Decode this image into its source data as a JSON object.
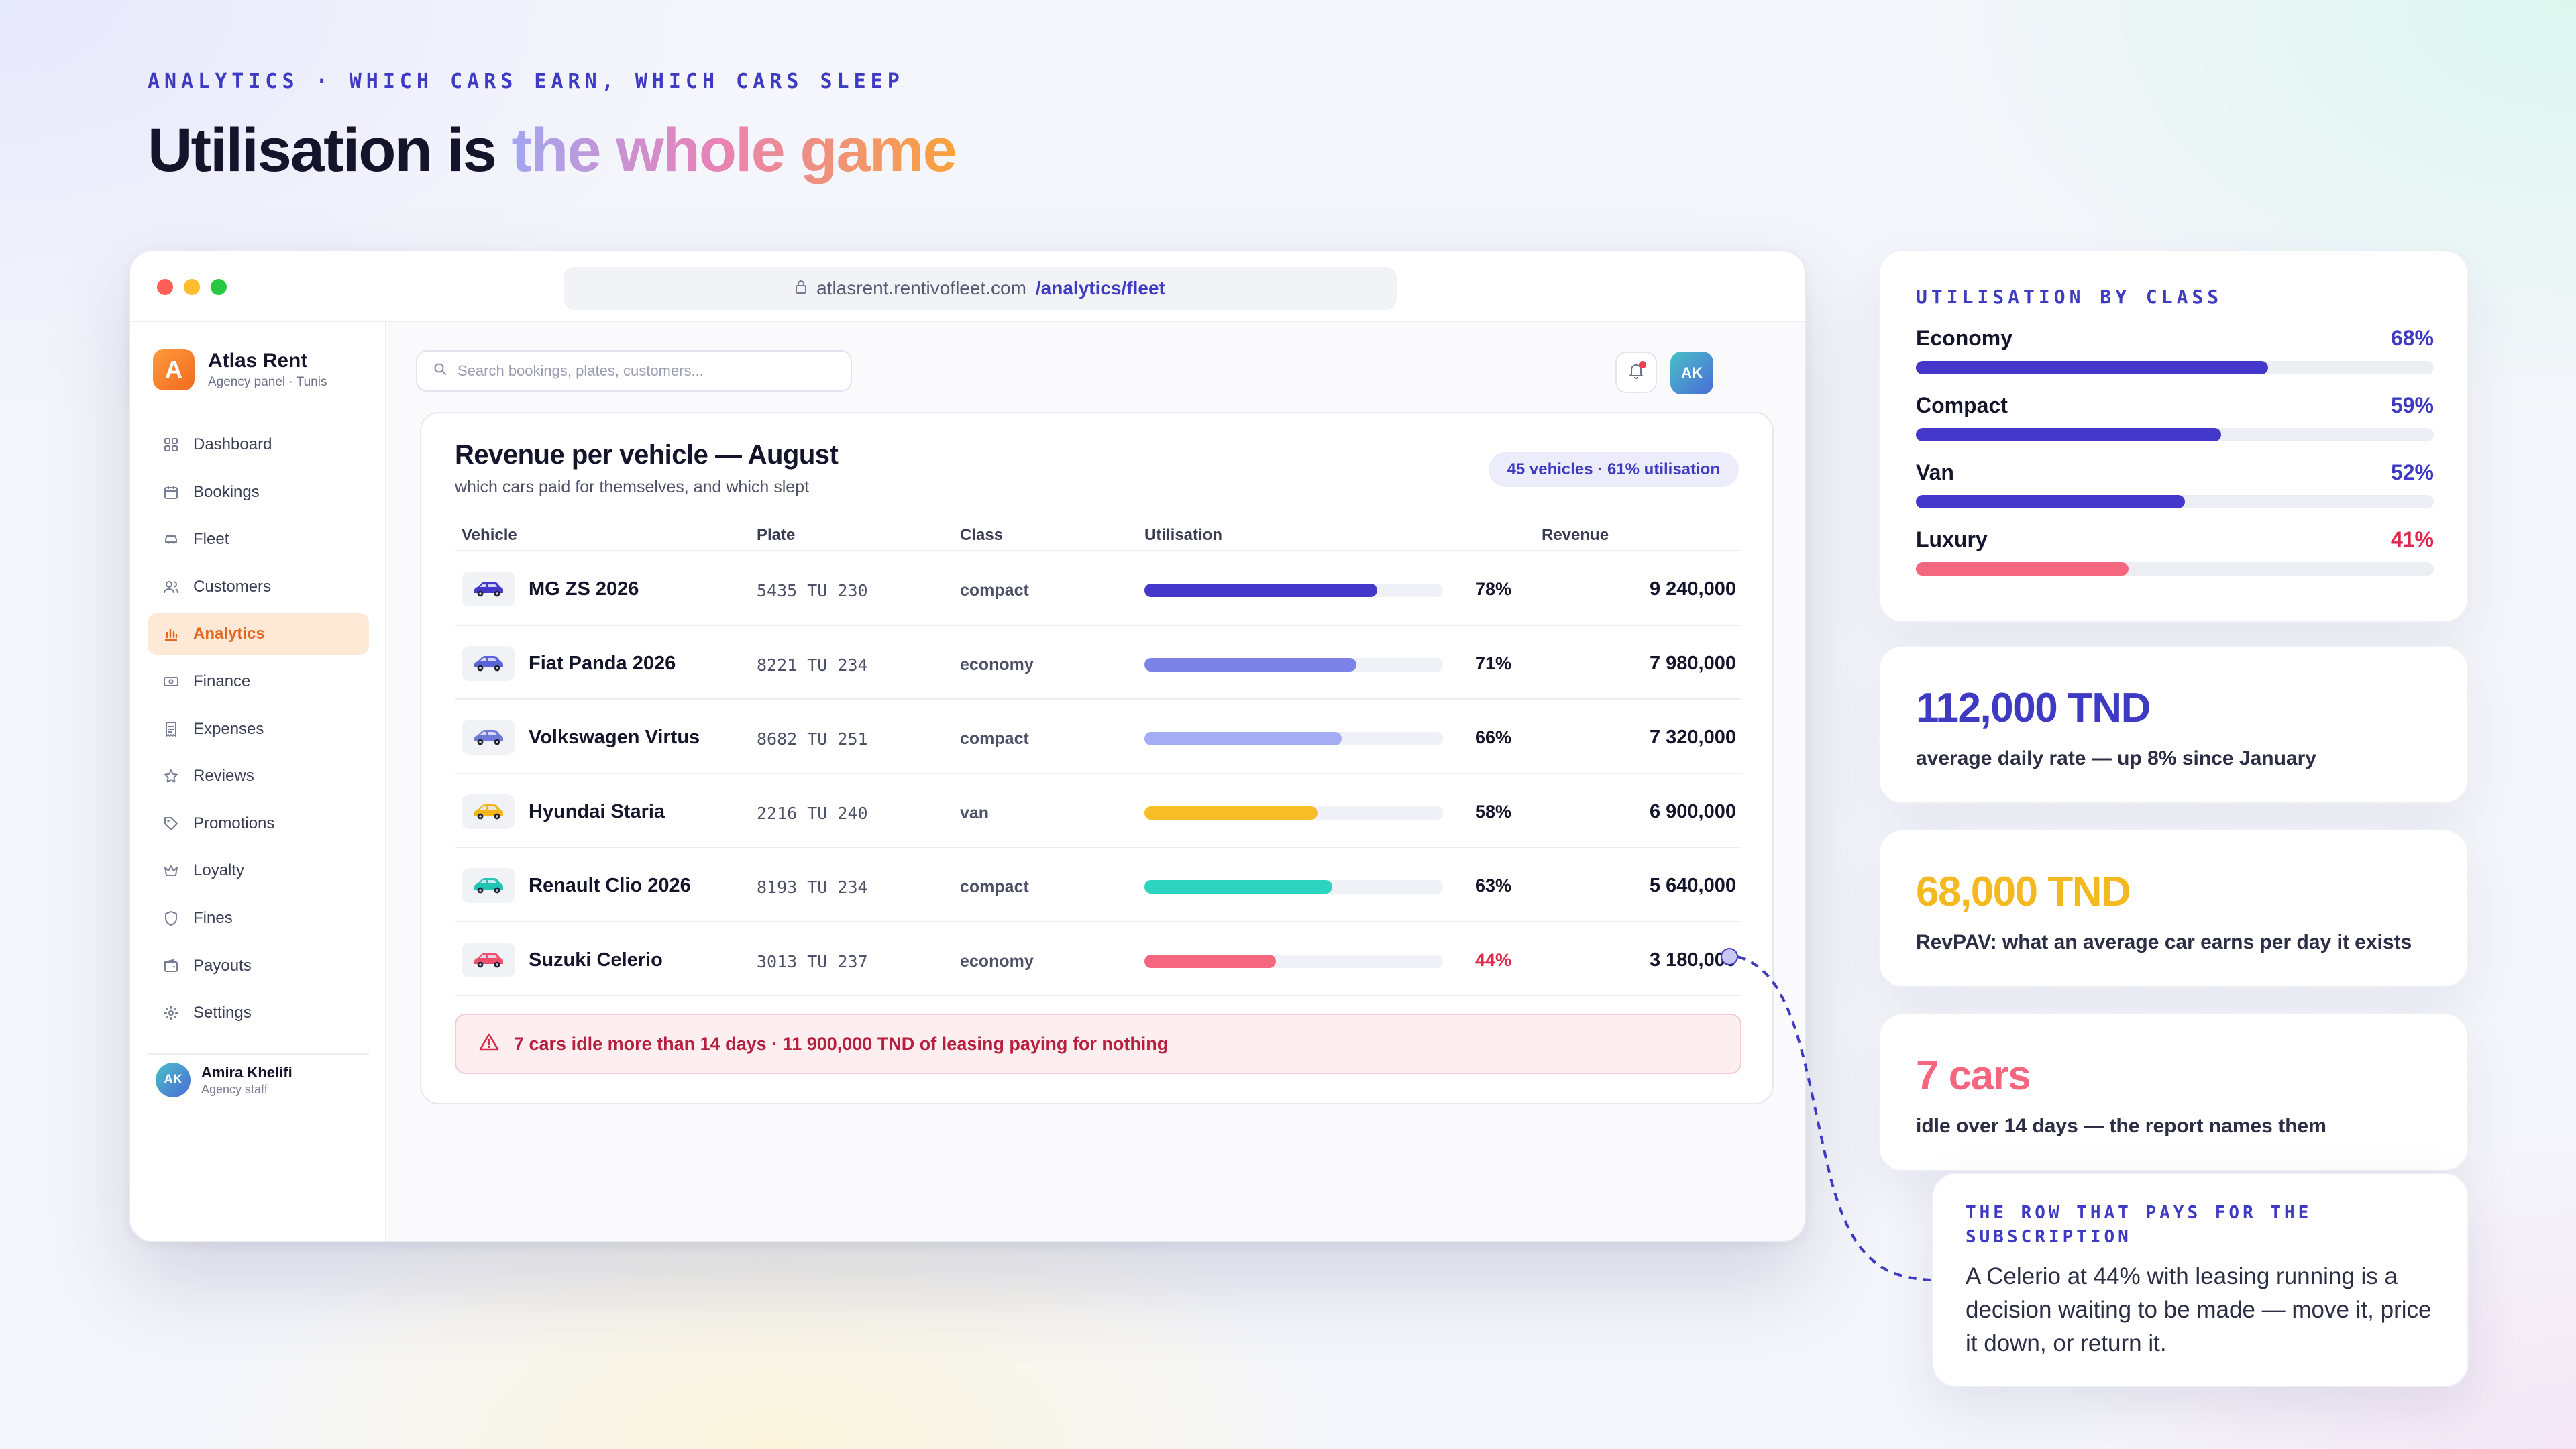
{
  "header": {
    "eyebrow": "ANALYTICS · WHICH CARS EARN, WHICH CARS SLEEP",
    "headline_plain": "Utilisation is",
    "headline_accent": "the whole game"
  },
  "browser": {
    "url_host": "atlasrent.rentivofleet.com",
    "url_path": "/analytics/fleet"
  },
  "sidebar": {
    "brand_initial": "A",
    "brand_name": "Atlas Rent",
    "brand_sub": "Agency panel · Tunis",
    "items": [
      {
        "label": "Dashboard",
        "icon": "grid-icon"
      },
      {
        "label": "Bookings",
        "icon": "calendar-icon"
      },
      {
        "label": "Fleet",
        "icon": "car-icon"
      },
      {
        "label": "Customers",
        "icon": "users-icon"
      },
      {
        "label": "Analytics",
        "icon": "bar-chart-icon",
        "active": true
      },
      {
        "label": "Finance",
        "icon": "banknote-icon"
      },
      {
        "label": "Expenses",
        "icon": "receipt-icon"
      },
      {
        "label": "Reviews",
        "icon": "star-icon"
      },
      {
        "label": "Promotions",
        "icon": "tag-icon"
      },
      {
        "label": "Loyalty",
        "icon": "crown-icon"
      },
      {
        "label": "Fines",
        "icon": "shield-icon"
      },
      {
        "label": "Payouts",
        "icon": "wallet-icon"
      },
      {
        "label": "Settings",
        "icon": "gear-icon"
      }
    ],
    "user": {
      "initials": "AK",
      "name": "Amira Khelifi",
      "role": "Agency staff"
    }
  },
  "topbar": {
    "search_placeholder": "Search bookings, plates, customers...",
    "avatar_initials": "AK"
  },
  "report": {
    "title": "Revenue per vehicle — August",
    "subtitle": "which cars paid for themselves, and which slept",
    "pill": "45 vehicles · 61% utilisation",
    "columns": {
      "vehicle": "Vehicle",
      "plate": "Plate",
      "class": "Class",
      "utilisation": "Utilisation",
      "revenue": "Revenue"
    },
    "rows": [
      {
        "vehicle": "MG ZS 2026",
        "plate": "5435 TU 230",
        "class": "compact",
        "utilisation": 78,
        "utilisation_label": "78%",
        "revenue": "9 240,000",
        "bar_color": "#4338ca",
        "car_color": "#4338ca"
      },
      {
        "vehicle": "Fiat Panda 2026",
        "plate": "8221 TU 234",
        "class": "economy",
        "utilisation": 71,
        "utilisation_label": "71%",
        "revenue": "7 980,000",
        "bar_color": "#7b83e8",
        "car_color": "#5b63d8"
      },
      {
        "vehicle": "Volkswagen Virtus",
        "plate": "8682 TU 251",
        "class": "compact",
        "utilisation": 66,
        "utilisation_label": "66%",
        "revenue": "7 320,000",
        "bar_color": "#a3acf4",
        "car_color": "#6f7ad6"
      },
      {
        "vehicle": "Hyundai Staria",
        "plate": "2216 TU 240",
        "class": "van",
        "utilisation": 58,
        "utilisation_label": "58%",
        "revenue": "6 900,000",
        "bar_color": "#f7bd26",
        "car_color": "#f2b51c"
      },
      {
        "vehicle": "Renault Clio 2026",
        "plate": "8193 TU 234",
        "class": "compact",
        "utilisation": 63,
        "utilisation_label": "63%",
        "revenue": "5 640,000",
        "bar_color": "#2dd4bf",
        "car_color": "#22c5b2"
      },
      {
        "vehicle": "Suzuki Celerio",
        "plate": "3013 TU 237",
        "class": "economy",
        "utilisation": 44,
        "utilisation_label": "44%",
        "revenue": "3 180,000",
        "bar_color": "#f4677e",
        "car_color": "#ef4f6a",
        "flagged": true
      }
    ],
    "alert": "7 cars idle more than 14 days · 11 900,000 TND of leasing paying for nothing"
  },
  "utilisation_by_class": {
    "title": "UTILISATION BY CLASS",
    "items": [
      {
        "label": "Economy",
        "value": 68,
        "value_label": "68%",
        "color": "#4338ca"
      },
      {
        "label": "Compact",
        "value": 59,
        "value_label": "59%",
        "color": "#4338ca"
      },
      {
        "label": "Van",
        "value": 52,
        "value_label": "52%",
        "color": "#4338ca"
      },
      {
        "label": "Luxury",
        "value": 41,
        "value_label": "41%",
        "color": "#f4677e",
        "bad": true
      }
    ]
  },
  "stats": [
    {
      "value": "112,000 TND",
      "desc": "average daily rate — up 8% since January",
      "color": "#3e3bc2"
    },
    {
      "value": "68,000 TND",
      "desc": "RevPAV: what an average car earns per day it exists",
      "color": "#f4b820"
    },
    {
      "value": "7 cars",
      "desc": "idle over 14 days — the report names them",
      "color": "#f4677e"
    }
  ],
  "callout": {
    "title": "THE ROW THAT PAYS FOR THE SUBSCRIPTION",
    "body": "A Celerio at 44% with leasing running is a decision waiting to be made — move it, price it down, or return it."
  }
}
